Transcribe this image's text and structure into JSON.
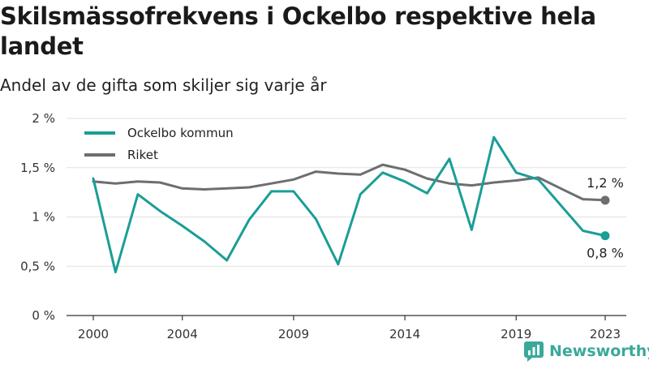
{
  "title": "Skilsmässofrekvens i Ockelbo respektive hela landet",
  "subtitle": "Andel av de gifta som skiljer sig varje år",
  "brand": "Newsworthy",
  "colors": {
    "ockelbo": "#1a9e96",
    "riket": "#6d6e71",
    "grid": "#e1e1e1",
    "axis": "#333333",
    "brand": "#3aa99a"
  },
  "chart_data": {
    "type": "line",
    "x": [
      2000,
      2001,
      2002,
      2003,
      2004,
      2005,
      2006,
      2007,
      2008,
      2009,
      2010,
      2011,
      2012,
      2013,
      2014,
      2015,
      2016,
      2017,
      2018,
      2019,
      2020,
      2021,
      2022,
      2023
    ],
    "series": [
      {
        "name": "Ockelbo kommun",
        "color": "#1a9e96",
        "values": [
          1.39,
          0.44,
          1.23,
          1.06,
          0.91,
          0.75,
          0.56,
          0.97,
          1.26,
          1.26,
          0.98,
          0.52,
          1.23,
          1.45,
          1.36,
          1.24,
          1.59,
          0.87,
          1.81,
          1.45,
          1.38,
          1.12,
          0.86,
          0.81
        ],
        "end_label": "0,8 %"
      },
      {
        "name": "Riket",
        "color": "#6d6e71",
        "values": [
          1.36,
          1.34,
          1.36,
          1.35,
          1.29,
          1.28,
          1.29,
          1.3,
          1.34,
          1.38,
          1.46,
          1.44,
          1.43,
          1.53,
          1.48,
          1.39,
          1.34,
          1.32,
          1.35,
          1.37,
          1.4,
          1.29,
          1.18,
          1.17
        ],
        "end_label": "1,2 %"
      }
    ],
    "x_ticks": [
      2000,
      2004,
      2009,
      2014,
      2019,
      2023
    ],
    "x_tick_labels": [
      "2000",
      "2004",
      "2009",
      "2014",
      "2019",
      "2023"
    ],
    "y_ticks": [
      0,
      0.5,
      1,
      1.5,
      2
    ],
    "y_tick_labels": [
      "0 %",
      "0,5 %",
      "1 %",
      "1,5 %",
      "2 %"
    ],
    "xlim": [
      2000,
      2023
    ],
    "ylim": [
      0,
      2
    ],
    "grid": "horizontal",
    "legend_position": "top-left"
  }
}
